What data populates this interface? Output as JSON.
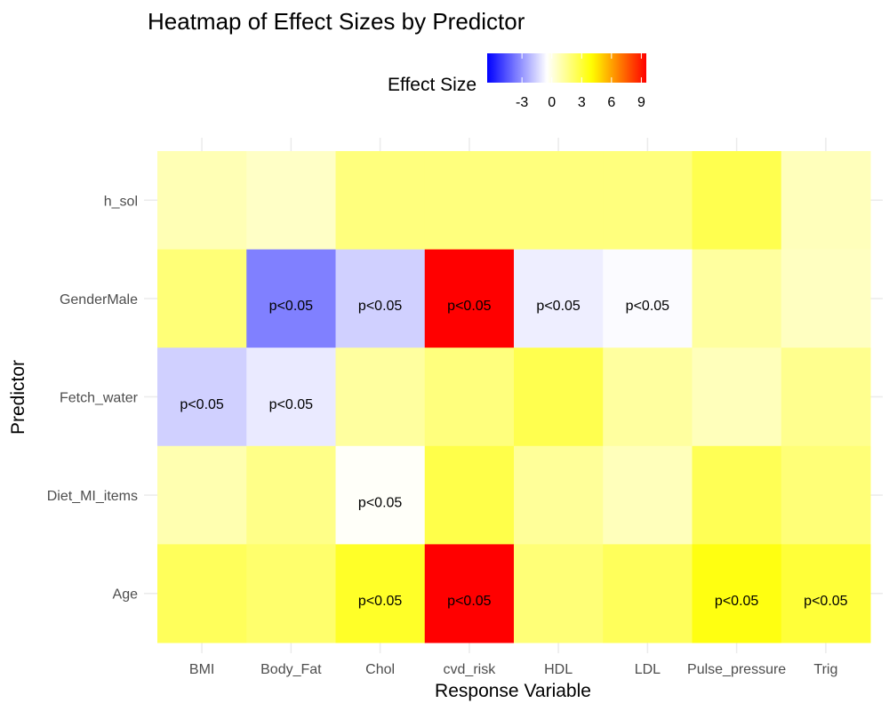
{
  "chart_data": {
    "type": "heatmap",
    "title": "Heatmap of Effect Sizes by Predictor",
    "xlabel": "Response Variable",
    "ylabel": "Predictor",
    "legend": {
      "title": "Effect Size",
      "placement": "top",
      "ticks": [
        "-3",
        "0",
        "3",
        "6",
        "9"
      ],
      "tick_values": [
        -3,
        0,
        3,
        6,
        9
      ],
      "range": [
        -6.5,
        9.5
      ],
      "color_stops": [
        {
          "value": -6.5,
          "color": "#0000ff"
        },
        {
          "value": -0.5,
          "color": "#ffffff"
        },
        {
          "value": 4,
          "color": "#ffff00"
        },
        {
          "value": 9.5,
          "color": "#ff0000"
        }
      ]
    },
    "x_categories": [
      "BMI",
      "Body_Fat",
      "Chol",
      "cvd_risk",
      "HDL",
      "LDL",
      "Pulse_pressure",
      "Trig"
    ],
    "y_categories": [
      "h_sol",
      "GenderMale",
      "Fetch_water",
      "Diet_MI_items",
      "Age"
    ],
    "values": [
      [
        0.8,
        0.5,
        1.8,
        1.8,
        1.8,
        1.8,
        2.6,
        0.7
      ],
      [
        1.9,
        -3.5,
        -1.6,
        9.5,
        -0.9,
        -0.6,
        1.2,
        0.6
      ],
      [
        -1.6,
        -1.0,
        1.2,
        1.8,
        2.6,
        1.2,
        0.7,
        1.5
      ],
      [
        0.9,
        1.6,
        -0.4,
        2.7,
        1.3,
        0.7,
        2.5,
        1.9
      ],
      [
        2.4,
        2.1,
        3.3,
        9.5,
        1.9,
        2.4,
        3.7,
        3.0
      ]
    ],
    "significance_label": "p<0.05",
    "significant": [
      [
        false,
        false,
        false,
        false,
        false,
        false,
        false,
        false
      ],
      [
        false,
        true,
        true,
        true,
        true,
        true,
        false,
        false
      ],
      [
        true,
        true,
        false,
        false,
        false,
        false,
        false,
        false
      ],
      [
        false,
        false,
        true,
        false,
        false,
        false,
        false,
        false
      ],
      [
        false,
        false,
        true,
        true,
        false,
        false,
        true,
        true
      ]
    ],
    "grid": true
  }
}
